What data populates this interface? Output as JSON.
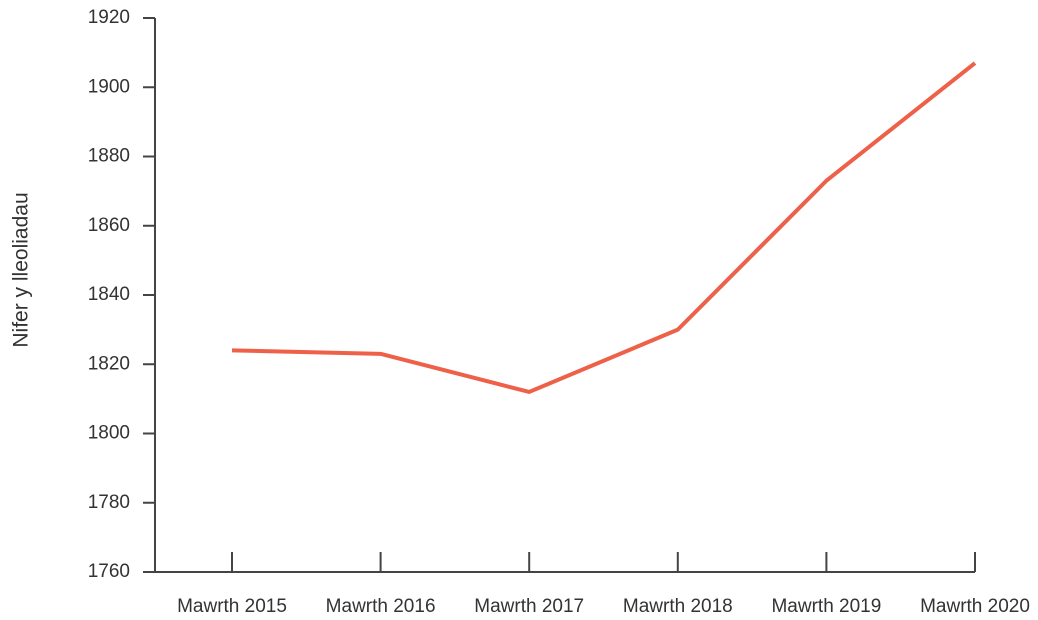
{
  "chart_data": {
    "type": "line",
    "y_label": "Nifer y lleoliadau",
    "categories": [
      "Mawrth 2015",
      "Mawrth 2016",
      "Mawrth 2017",
      "Mawrth 2018",
      "Mawrth 2019",
      "Mawrth 2020"
    ],
    "series": [
      {
        "name": null,
        "color": "#ee6048",
        "values": [
          1824,
          1823,
          1812,
          1830,
          1873,
          1907
        ]
      }
    ],
    "ylim": [
      1760,
      1920
    ],
    "yticks": [
      1760,
      1780,
      1800,
      1820,
      1840,
      1860,
      1880,
      1900,
      1920
    ],
    "grid": false
  }
}
